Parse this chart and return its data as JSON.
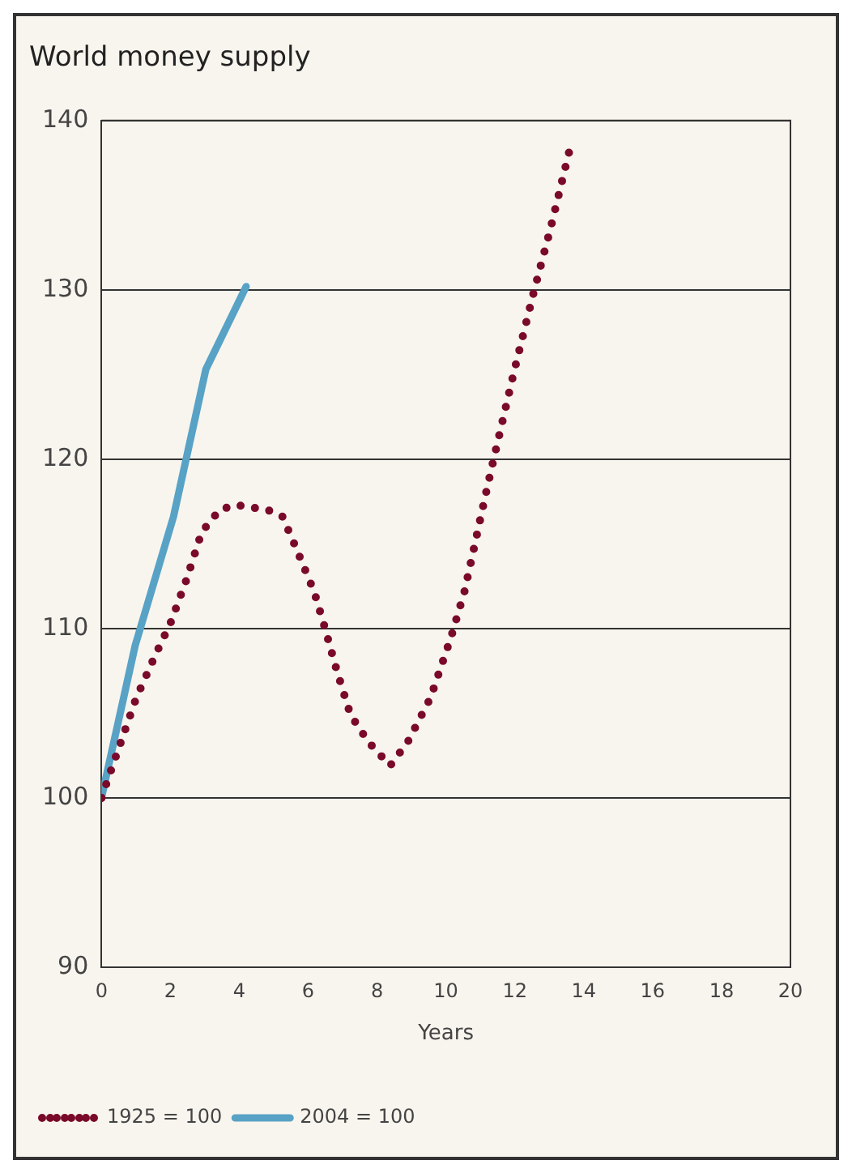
{
  "chart_data": {
    "type": "line",
    "title": "World money supply",
    "xlabel": "Years",
    "xlim": [
      0,
      20
    ],
    "xticks": [
      0,
      2,
      4,
      6,
      8,
      10,
      12,
      14,
      16,
      18,
      20
    ],
    "ylim": [
      90,
      140
    ],
    "yticks": [
      90,
      100,
      110,
      120,
      130,
      140
    ],
    "grid": "y",
    "legend": "bottom left",
    "marker": "none",
    "series": [
      {
        "name": "1925 = 100",
        "color": "#7a0a2a",
        "line_style": "dotted",
        "x": [
          0,
          1.01,
          1.58,
          2.0,
          2.47,
          2.91,
          3.43,
          3.89,
          4.83,
          5.26,
          5.64,
          6.17,
          6.45,
          6.82,
          7.23,
          7.75,
          8.38,
          8.89,
          9.55,
          10.15,
          10.54,
          11.14,
          11.35,
          11.98,
          12.54,
          13.02,
          13.57
        ],
        "values": [
          100,
          105.9,
          108.5,
          110.3,
          112.9,
          115.7,
          117.0,
          117.3,
          117.0,
          116.6,
          114.8,
          112.2,
          110.3,
          107.6,
          104.9,
          103.3,
          101.9,
          103.3,
          105.9,
          109.5,
          112.2,
          117.8,
          119.7,
          125.2,
          129.8,
          133.5,
          138.1
        ]
      },
      {
        "name": "2004 = 100",
        "color": "#58a2c6",
        "line_style": "solid",
        "x": [
          0,
          0.98,
          2.09,
          3.03,
          4.2
        ],
        "values": [
          100,
          109.0,
          116.6,
          125.3,
          130.2
        ]
      }
    ]
  }
}
